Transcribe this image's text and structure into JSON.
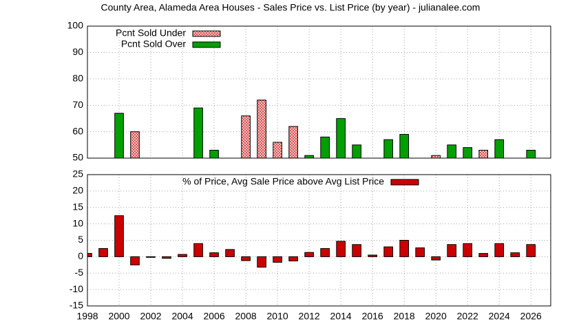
{
  "chart_data": [
    {
      "type": "bar",
      "title": "County Area, Alameda Area Houses - Sales Price vs. List Price (by year) - julianalee.com",
      "x": [
        1998,
        1999,
        2000,
        2001,
        2002,
        2003,
        2004,
        2005,
        2006,
        2007,
        2008,
        2009,
        2010,
        2011,
        2012,
        2013,
        2014,
        2015,
        2016,
        2017,
        2018,
        2019,
        2020,
        2021,
        2022,
        2023,
        2024,
        2025,
        2026
      ],
      "series": [
        {
          "name": "Pcnt Sold Under",
          "color": "#ffc8c8",
          "hatch": true,
          "values": [
            null,
            null,
            null,
            60,
            null,
            null,
            null,
            null,
            null,
            null,
            66,
            72,
            56,
            62,
            null,
            null,
            null,
            null,
            null,
            null,
            null,
            null,
            51,
            null,
            null,
            53,
            null,
            null,
            null
          ]
        },
        {
          "name": "Pcnt Sold Over",
          "color": "#00a000",
          "values": [
            null,
            null,
            67,
            null,
            null,
            null,
            null,
            69,
            53,
            null,
            null,
            null,
            null,
            null,
            51,
            58,
            65,
            55,
            null,
            57,
            59,
            null,
            null,
            55,
            54,
            null,
            57,
            null,
            53
          ]
        }
      ],
      "xlim": [
        1998,
        2027.25
      ],
      "ylim": [
        50,
        100
      ],
      "yticks": [
        50,
        60,
        70,
        80,
        90,
        100
      ],
      "grid": true
    },
    {
      "type": "bar",
      "x": [
        1998,
        1999,
        2000,
        2001,
        2002,
        2003,
        2004,
        2005,
        2006,
        2007,
        2008,
        2009,
        2010,
        2011,
        2012,
        2013,
        2014,
        2015,
        2016,
        2017,
        2018,
        2019,
        2020,
        2021,
        2022,
        2023,
        2024,
        2025,
        2026
      ],
      "series": [
        {
          "name": "% of Price, Avg Sale Price above Avg List Price",
          "color": "#cc0000",
          "values": [
            1,
            2.5,
            12.5,
            -2.5,
            -0.2,
            -0.5,
            0.7,
            4,
            1.2,
            2.2,
            -1.2,
            -3.2,
            -1.7,
            -1.3,
            1.3,
            2.5,
            4.7,
            3.7,
            0.5,
            3,
            5,
            2.7,
            -1,
            3.7,
            4,
            1,
            4,
            1.2,
            3.7
          ]
        }
      ],
      "xlim": [
        1998,
        2027.25
      ],
      "xticks": [
        1998,
        2000,
        2002,
        2004,
        2006,
        2008,
        2010,
        2012,
        2014,
        2016,
        2018,
        2020,
        2022,
        2024,
        2026
      ],
      "ylim": [
        -15,
        25
      ],
      "yticks": [
        -15,
        -10,
        -5,
        0,
        5,
        10,
        15,
        20,
        25
      ],
      "grid": true
    }
  ]
}
